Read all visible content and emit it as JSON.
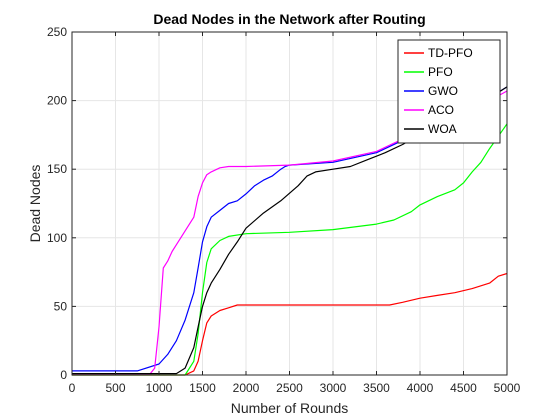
{
  "chart_data": {
    "type": "line",
    "title": "Dead Nodes in the Network after Routing",
    "xlabel": "Number of Rounds",
    "ylabel": "Dead Nodes",
    "xlim": [
      0,
      5000
    ],
    "ylim": [
      0,
      250
    ],
    "xticks": [
      0,
      500,
      1000,
      1500,
      2000,
      2500,
      3000,
      3500,
      4000,
      4500,
      5000
    ],
    "yticks": [
      0,
      50,
      100,
      150,
      200,
      250
    ],
    "grid": true,
    "legend_position": "top-right",
    "series": [
      {
        "name": "TD-PFO",
        "color": "#ff0000",
        "x": [
          0,
          1300,
          1400,
          1450,
          1500,
          1550,
          1600,
          1700,
          1800,
          1900,
          2000,
          2500,
          3000,
          3500,
          3650,
          3800,
          4000,
          4200,
          4400,
          4600,
          4800,
          4900,
          5000
        ],
        "y": [
          0,
          0,
          3,
          10,
          25,
          38,
          43,
          47,
          49,
          51,
          51,
          51,
          51,
          51,
          51,
          53,
          56,
          58,
          60,
          63,
          67,
          72,
          74
        ]
      },
      {
        "name": "PFO",
        "color": "#00ff00",
        "x": [
          0,
          1300,
          1400,
          1450,
          1500,
          1550,
          1600,
          1700,
          1800,
          2000,
          2500,
          3000,
          3500,
          3700,
          3900,
          4000,
          4200,
          4400,
          4500,
          4600,
          4700,
          4800,
          4900,
          5000
        ],
        "y": [
          0,
          0,
          10,
          30,
          60,
          82,
          92,
          98,
          101,
          103,
          104,
          106,
          110,
          113,
          119,
          124,
          130,
          135,
          140,
          148,
          155,
          165,
          174,
          183
        ]
      },
      {
        "name": "GWO",
        "color": "#0000ff",
        "x": [
          0,
          750,
          1000,
          1100,
          1200,
          1300,
          1400,
          1450,
          1500,
          1550,
          1600,
          1700,
          1800,
          1900,
          2000,
          2100,
          2200,
          2300,
          2400,
          2450,
          2500,
          3000,
          3500,
          4000,
          4500,
          5000
        ],
        "y": [
          3,
          3,
          8,
          15,
          25,
          40,
          60,
          78,
          97,
          108,
          115,
          120,
          125,
          127,
          132,
          138,
          142,
          145,
          150,
          152,
          153,
          155,
          162,
          177,
          190,
          210
        ]
      },
      {
        "name": "ACO",
        "color": "#ff00ff",
        "x": [
          0,
          900,
          950,
          1000,
          1050,
          1100,
          1150,
          1200,
          1300,
          1400,
          1450,
          1500,
          1550,
          1600,
          1700,
          1800,
          2000,
          2500,
          3000,
          3500,
          4000,
          4500,
          4800,
          5000
        ],
        "y": [
          1,
          1,
          5,
          35,
          78,
          83,
          90,
          95,
          105,
          115,
          130,
          140,
          146,
          148,
          151,
          152,
          152,
          153,
          156,
          163,
          178,
          190,
          200,
          207
        ]
      },
      {
        "name": "WOA",
        "color": "#000000",
        "x": [
          0,
          1200,
          1300,
          1400,
          1450,
          1500,
          1550,
          1600,
          1700,
          1800,
          1900,
          2000,
          2200,
          2400,
          2600,
          2700,
          2800,
          3000,
          3200,
          3400,
          3600,
          3800,
          4000,
          4200,
          4400,
          4600,
          4800,
          4900,
          5000
        ],
        "y": [
          1,
          1,
          5,
          20,
          35,
          50,
          60,
          67,
          77,
          88,
          97,
          107,
          118,
          127,
          138,
          145,
          148,
          150,
          152,
          157,
          162,
          168,
          175,
          182,
          188,
          195,
          200,
          206,
          210
        ]
      }
    ]
  }
}
